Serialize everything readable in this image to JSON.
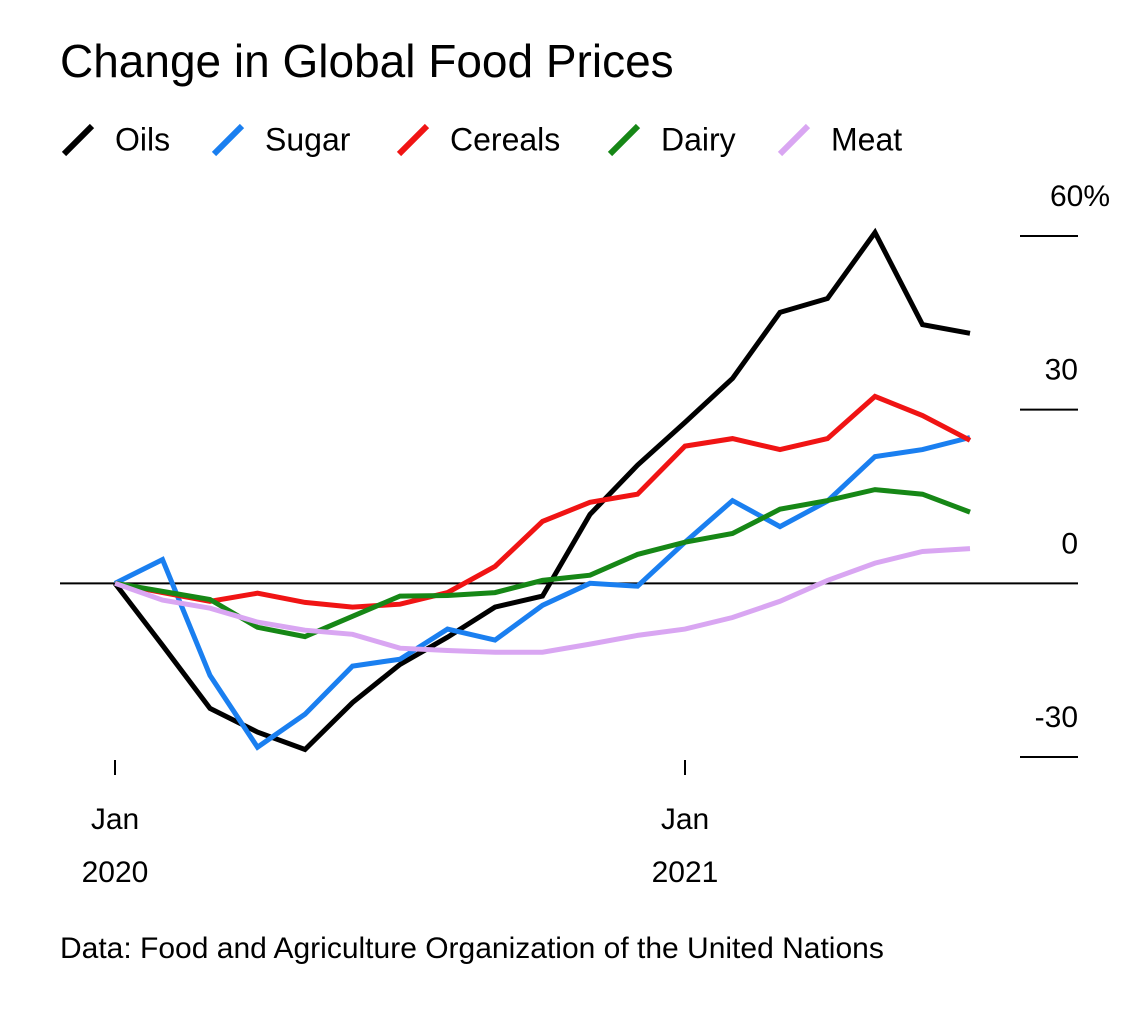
{
  "chart_data": {
    "type": "line",
    "title": "Change in Global Food Prices",
    "source": "Data: Food and Agriculture Organization of the United Nations",
    "x": [
      "2020-01",
      "2020-02",
      "2020-03",
      "2020-04",
      "2020-05",
      "2020-06",
      "2020-07",
      "2020-08",
      "2020-09",
      "2020-10",
      "2020-11",
      "2020-12",
      "2021-01",
      "2021-02",
      "2021-03",
      "2021-04",
      "2021-05",
      "2021-06",
      "2021-07"
    ],
    "xticks": [
      {
        "value": "2020-01",
        "label": [
          "Jan",
          "2020"
        ]
      },
      {
        "value": "2021-01",
        "label": [
          "Jan",
          "2021"
        ]
      }
    ],
    "ylim": [
      -30,
      60
    ],
    "yticks": [
      {
        "value": 60,
        "label": "60%"
      },
      30,
      0,
      -30
    ],
    "series": [
      {
        "name": "Oils",
        "color": "#000000",
        "values": [
          0,
          -10.7,
          -21.6,
          -25.7,
          -28.7,
          -20.6,
          -14.0,
          -9.3,
          -4.1,
          -2.2,
          11.9,
          20.4,
          27.8,
          35.4,
          46.8,
          49.2,
          60.6,
          44.7,
          43.2
        ]
      },
      {
        "name": "Sugar",
        "color": "#1a7ff0",
        "values": [
          0,
          4.1,
          -15.9,
          -28.3,
          -22.6,
          -14.3,
          -13.1,
          -7.9,
          -9.8,
          -3.8,
          0,
          -0.5,
          7.1,
          14.3,
          9.8,
          14.2,
          21.9,
          23.1,
          25.2
        ]
      },
      {
        "name": "Cereals",
        "color": "#f01414",
        "values": [
          0,
          -1.6,
          -3.1,
          -1.7,
          -3.3,
          -4.1,
          -3.6,
          -1.6,
          2.9,
          10.7,
          14.0,
          15.4,
          23.7,
          25.0,
          23.1,
          25.0,
          32.3,
          29.0,
          24.7
        ]
      },
      {
        "name": "Dairy",
        "color": "#168716",
        "values": [
          0,
          -1.4,
          -2.8,
          -7.6,
          -9.2,
          -5.7,
          -2.2,
          -2.1,
          -1.6,
          0.5,
          1.4,
          5.0,
          7.1,
          8.6,
          12.8,
          14.3,
          16.2,
          15.4,
          12.3
        ]
      },
      {
        "name": "Meat",
        "color": "#d9a6f2",
        "values": [
          0,
          -2.9,
          -4.3,
          -6.7,
          -8.1,
          -8.8,
          -11.2,
          -11.6,
          -11.9,
          -11.9,
          -10.5,
          -9.0,
          -7.9,
          -5.9,
          -3.1,
          0.5,
          3.5,
          5.5,
          6.0
        ]
      }
    ]
  }
}
